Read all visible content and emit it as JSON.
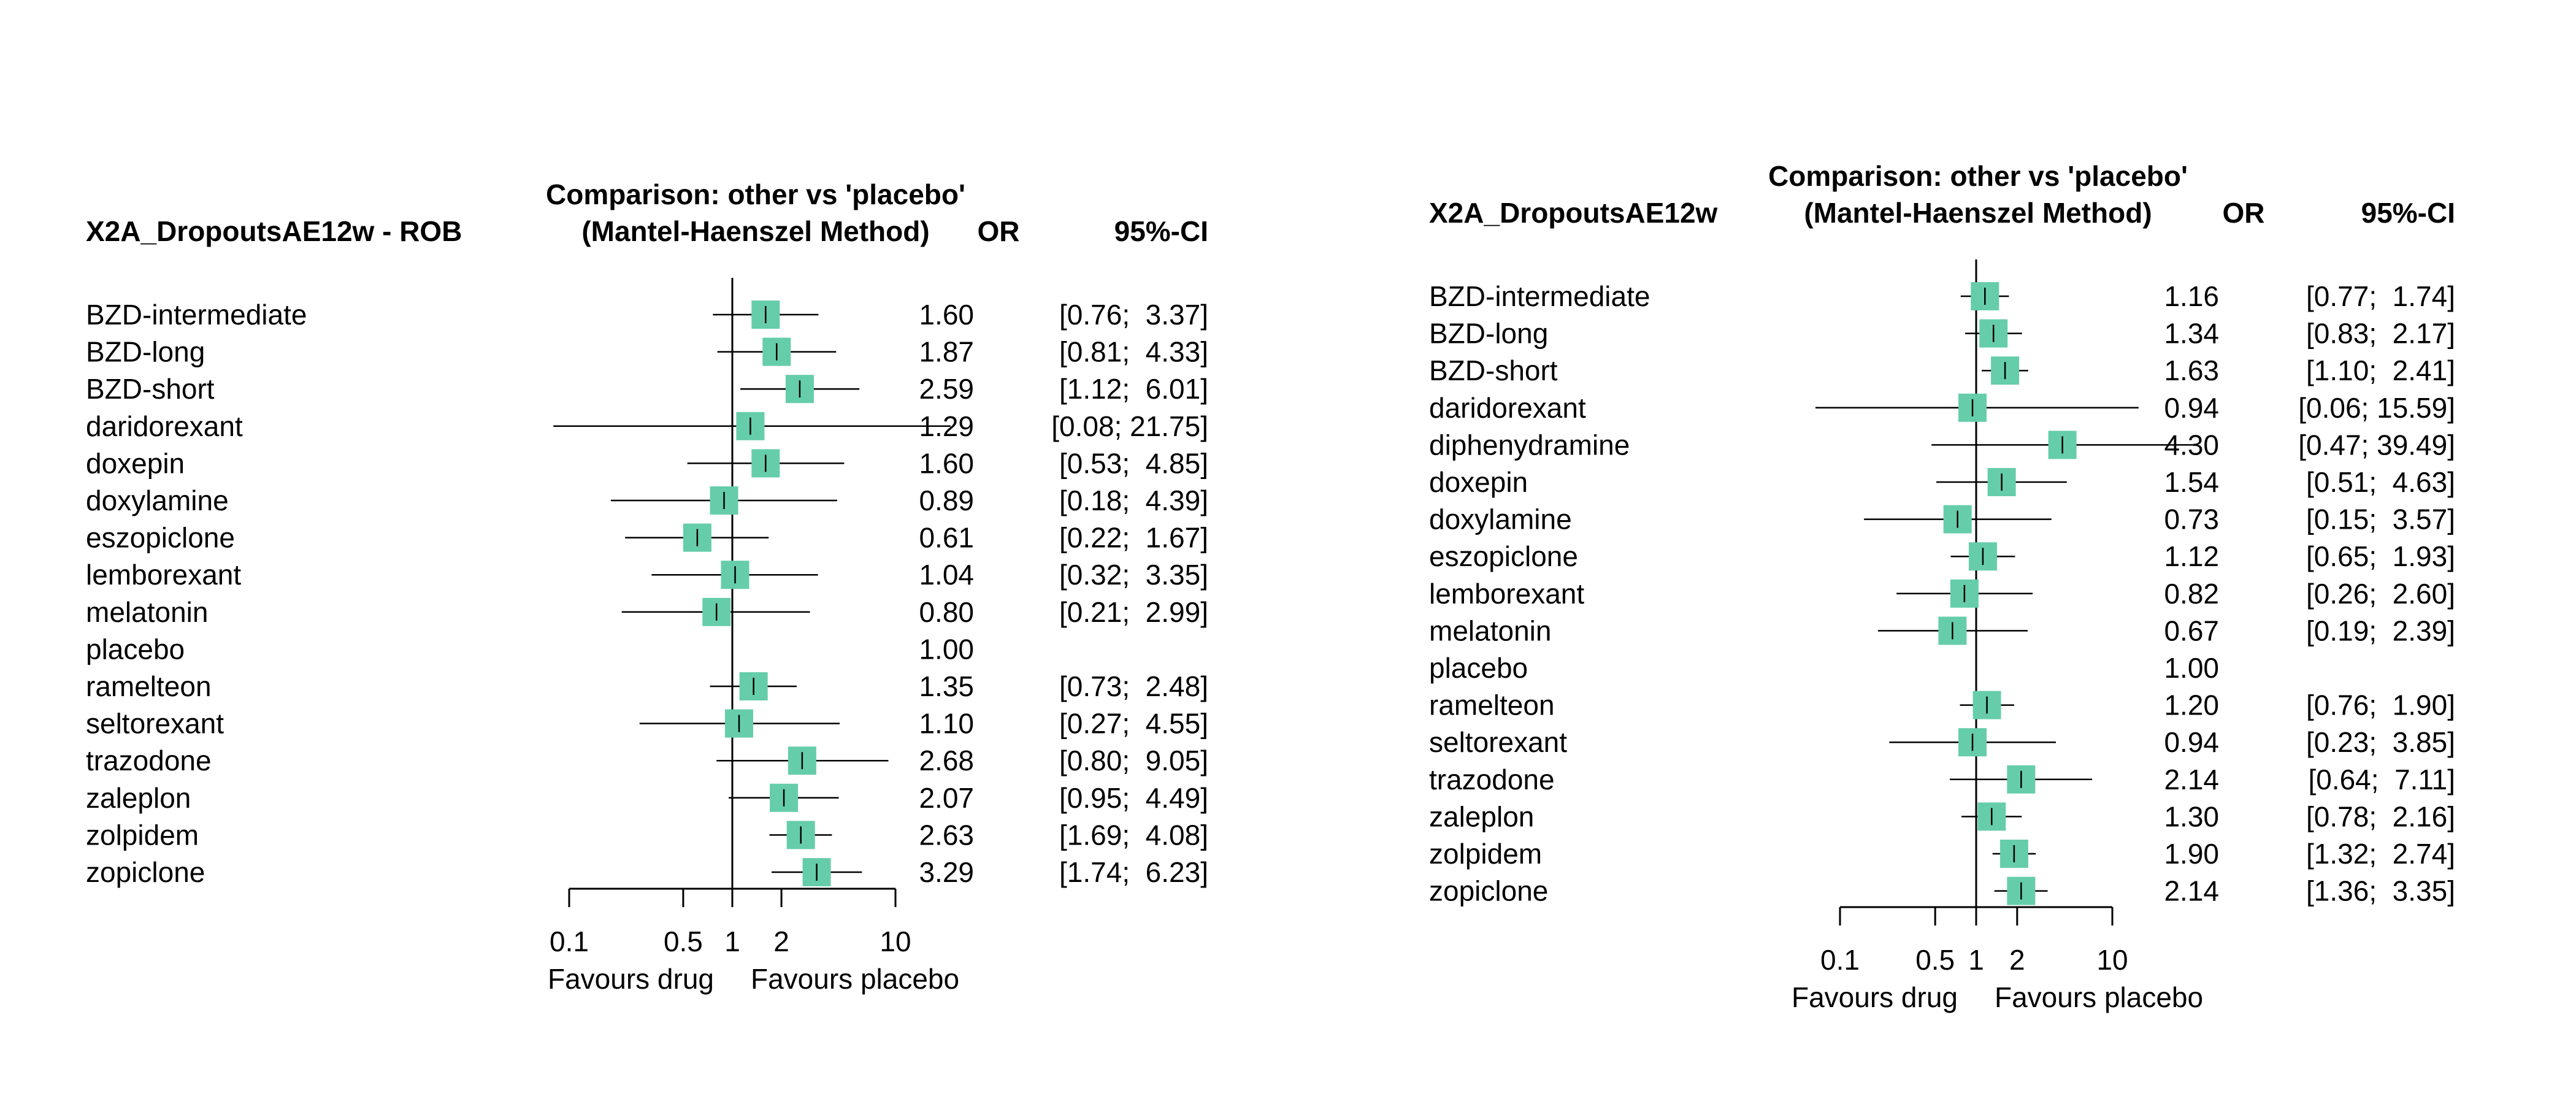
{
  "marker_color": "#66cdaa",
  "chart_data": [
    {
      "type": "forest",
      "title": "X2A_DropoutsAE12w - ROB",
      "method_line1": "Comparison: other vs 'placebo'",
      "method_line2": "(Mantel-Haenszel Method)",
      "effect_label": "OR",
      "ci_label": "95%-CI",
      "xscale": "log",
      "reference": 1,
      "xticks": [
        0.1,
        0.5,
        1,
        2,
        10
      ],
      "xtick_labels": [
        "0.1",
        "0.5",
        "1",
        "2",
        "10"
      ],
      "favours_left": "Favours drug",
      "favours_right": "Favours placebo",
      "rows": [
        {
          "name": "BZD-intermediate",
          "or": 1.6,
          "lo": 0.76,
          "hi": 3.37,
          "or_text": "1.60",
          "ci_text": "[0.76;  3.37]"
        },
        {
          "name": "BZD-long",
          "or": 1.87,
          "lo": 0.81,
          "hi": 4.33,
          "or_text": "1.87",
          "ci_text": "[0.81;  4.33]"
        },
        {
          "name": "BZD-short",
          "or": 2.59,
          "lo": 1.12,
          "hi": 6.01,
          "or_text": "2.59",
          "ci_text": "[1.12;  6.01]"
        },
        {
          "name": "daridorexant",
          "or": 1.29,
          "lo": 0.08,
          "hi": 21.75,
          "or_text": "1.29",
          "ci_text": "[0.08; 21.75]"
        },
        {
          "name": "doxepin",
          "or": 1.6,
          "lo": 0.53,
          "hi": 4.85,
          "or_text": "1.60",
          "ci_text": "[0.53;  4.85]"
        },
        {
          "name": "doxylamine",
          "or": 0.89,
          "lo": 0.18,
          "hi": 4.39,
          "or_text": "0.89",
          "ci_text": "[0.18;  4.39]"
        },
        {
          "name": "eszopiclone",
          "or": 0.61,
          "lo": 0.22,
          "hi": 1.67,
          "or_text": "0.61",
          "ci_text": "[0.22;  1.67]"
        },
        {
          "name": "lemborexant",
          "or": 1.04,
          "lo": 0.32,
          "hi": 3.35,
          "or_text": "1.04",
          "ci_text": "[0.32;  3.35]"
        },
        {
          "name": "melatonin",
          "or": 0.8,
          "lo": 0.21,
          "hi": 2.99,
          "or_text": "0.80",
          "ci_text": "[0.21;  2.99]"
        },
        {
          "name": "placebo",
          "or": 1.0,
          "lo": null,
          "hi": null,
          "or_text": "1.00",
          "ci_text": ""
        },
        {
          "name": "ramelteon",
          "or": 1.35,
          "lo": 0.73,
          "hi": 2.48,
          "or_text": "1.35",
          "ci_text": "[0.73;  2.48]"
        },
        {
          "name": "seltorexant",
          "or": 1.1,
          "lo": 0.27,
          "hi": 4.55,
          "or_text": "1.10",
          "ci_text": "[0.27;  4.55]"
        },
        {
          "name": "trazodone",
          "or": 2.68,
          "lo": 0.8,
          "hi": 9.05,
          "or_text": "2.68",
          "ci_text": "[0.80;  9.05]"
        },
        {
          "name": "zaleplon",
          "or": 2.07,
          "lo": 0.95,
          "hi": 4.49,
          "or_text": "2.07",
          "ci_text": "[0.95;  4.49]"
        },
        {
          "name": "zolpidem",
          "or": 2.63,
          "lo": 1.69,
          "hi": 4.08,
          "or_text": "2.63",
          "ci_text": "[1.69;  4.08]"
        },
        {
          "name": "zopiclone",
          "or": 3.29,
          "lo": 1.74,
          "hi": 6.23,
          "or_text": "3.29",
          "ci_text": "[1.74;  6.23]"
        }
      ]
    },
    {
      "type": "forest",
      "title": "X2A_DropoutsAE12w",
      "method_line1": "Comparison: other vs 'placebo'",
      "method_line2": "(Mantel-Haenszel Method)",
      "effect_label": "OR",
      "ci_label": "95%-CI",
      "xscale": "log",
      "reference": 1,
      "xticks": [
        0.1,
        0.5,
        1,
        2,
        10
      ],
      "xtick_labels": [
        "0.1",
        "0.5",
        "1",
        "2",
        "10"
      ],
      "favours_left": "Favours drug",
      "favours_right": "Favours placebo",
      "rows": [
        {
          "name": "BZD-intermediate",
          "or": 1.16,
          "lo": 0.77,
          "hi": 1.74,
          "or_text": "1.16",
          "ci_text": "[0.77;  1.74]"
        },
        {
          "name": "BZD-long",
          "or": 1.34,
          "lo": 0.83,
          "hi": 2.17,
          "or_text": "1.34",
          "ci_text": "[0.83;  2.17]"
        },
        {
          "name": "BZD-short",
          "or": 1.63,
          "lo": 1.1,
          "hi": 2.41,
          "or_text": "1.63",
          "ci_text": "[1.10;  2.41]"
        },
        {
          "name": "daridorexant",
          "or": 0.94,
          "lo": 0.06,
          "hi": 15.59,
          "or_text": "0.94",
          "ci_text": "[0.06; 15.59]"
        },
        {
          "name": "diphenydramine",
          "or": 4.3,
          "lo": 0.47,
          "hi": 39.49,
          "or_text": "4.30",
          "ci_text": "[0.47; 39.49]"
        },
        {
          "name": "doxepin",
          "or": 1.54,
          "lo": 0.51,
          "hi": 4.63,
          "or_text": "1.54",
          "ci_text": "[0.51;  4.63]"
        },
        {
          "name": "doxylamine",
          "or": 0.73,
          "lo": 0.15,
          "hi": 3.57,
          "or_text": "0.73",
          "ci_text": "[0.15;  3.57]"
        },
        {
          "name": "eszopiclone",
          "or": 1.12,
          "lo": 0.65,
          "hi": 1.93,
          "or_text": "1.12",
          "ci_text": "[0.65;  1.93]"
        },
        {
          "name": "lemborexant",
          "or": 0.82,
          "lo": 0.26,
          "hi": 2.6,
          "or_text": "0.82",
          "ci_text": "[0.26;  2.60]"
        },
        {
          "name": "melatonin",
          "or": 0.67,
          "lo": 0.19,
          "hi": 2.39,
          "or_text": "0.67",
          "ci_text": "[0.19;  2.39]"
        },
        {
          "name": "placebo",
          "or": 1.0,
          "lo": null,
          "hi": null,
          "or_text": "1.00",
          "ci_text": ""
        },
        {
          "name": "ramelteon",
          "or": 1.2,
          "lo": 0.76,
          "hi": 1.9,
          "or_text": "1.20",
          "ci_text": "[0.76;  1.90]"
        },
        {
          "name": "seltorexant",
          "or": 0.94,
          "lo": 0.23,
          "hi": 3.85,
          "or_text": "0.94",
          "ci_text": "[0.23;  3.85]"
        },
        {
          "name": "trazodone",
          "or": 2.14,
          "lo": 0.64,
          "hi": 7.11,
          "or_text": "2.14",
          "ci_text": "[0.64;  7.11]"
        },
        {
          "name": "zaleplon",
          "or": 1.3,
          "lo": 0.78,
          "hi": 2.16,
          "or_text": "1.30",
          "ci_text": "[0.78;  2.16]"
        },
        {
          "name": "zolpidem",
          "or": 1.9,
          "lo": 1.32,
          "hi": 2.74,
          "or_text": "1.90",
          "ci_text": "[1.32;  2.74]"
        },
        {
          "name": "zopiclone",
          "or": 2.14,
          "lo": 1.36,
          "hi": 3.35,
          "or_text": "2.14",
          "ci_text": "[1.36;  3.35]"
        }
      ]
    }
  ]
}
